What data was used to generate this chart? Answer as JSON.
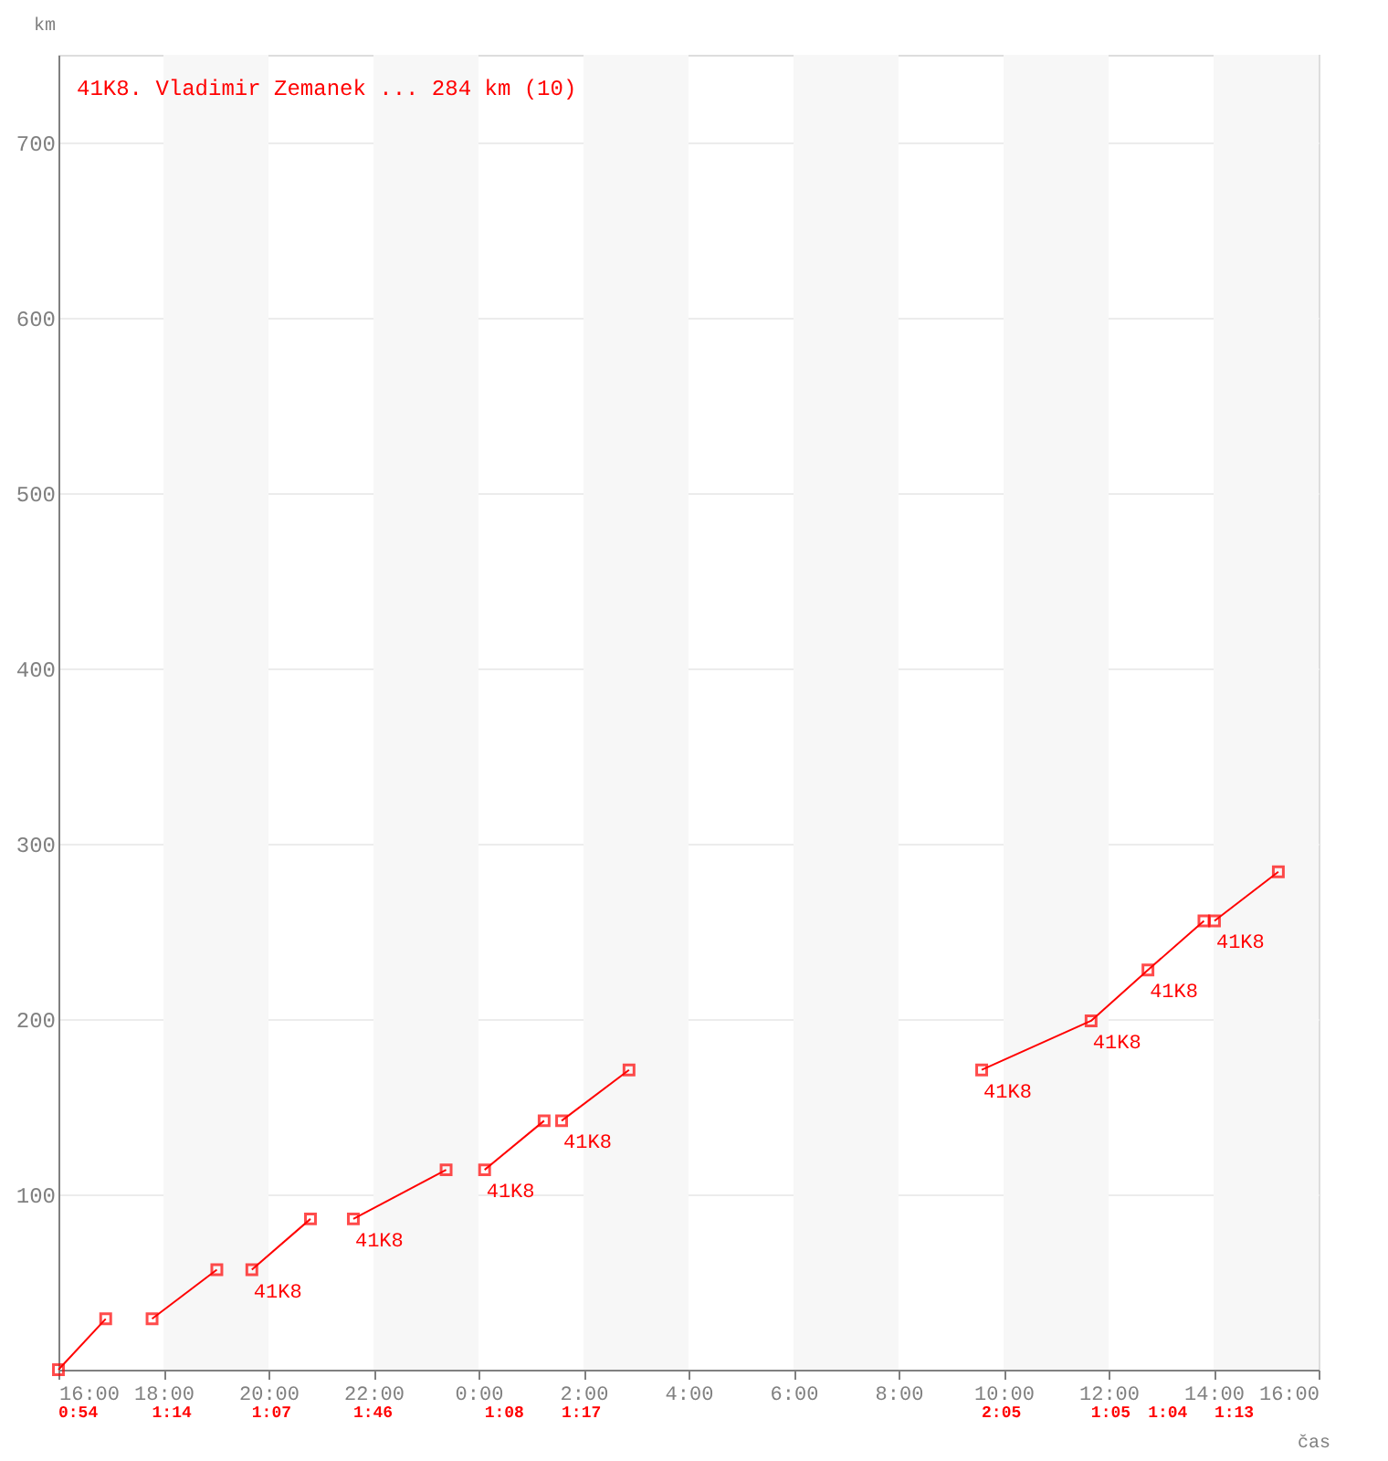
{
  "chart_data": {
    "type": "line",
    "title": "41K8. Vladimir Zemanek ... 284 km (10)",
    "xlabel": "čas",
    "ylabel": "km",
    "xlim": [
      "2000-01-01T16:00",
      "2000-01-02T16:00"
    ],
    "xticks": [
      {
        "value": "2000-01-01T16:00",
        "label": "16:00"
      },
      {
        "value": "2000-01-01T18:00",
        "label": "18:00"
      },
      {
        "value": "2000-01-01T20:00",
        "label": "20:00"
      },
      {
        "value": "2000-01-01T22:00",
        "label": "22:00"
      },
      {
        "value": "2000-01-02T00:00",
        "label": "0:00"
      },
      {
        "value": "2000-01-02T02:00",
        "label": "2:00"
      },
      {
        "value": "2000-01-02T04:00",
        "label": "4:00"
      },
      {
        "value": "2000-01-02T06:00",
        "label": "6:00"
      },
      {
        "value": "2000-01-02T08:00",
        "label": "8:00"
      },
      {
        "value": "2000-01-02T10:00",
        "label": "10:00"
      },
      {
        "value": "2000-01-02T12:00",
        "label": "12:00"
      },
      {
        "value": "2000-01-02T14:00",
        "label": "14:00"
      },
      {
        "value": "2000-01-02T16:00",
        "label": "16:00"
      }
    ],
    "ylim": [
      0,
      750
    ],
    "yticks": [
      100,
      200,
      300,
      400,
      500,
      600,
      700
    ],
    "grid": "y",
    "marker": "square",
    "line_style": "solid",
    "series": [
      {
        "color": "#ff0000",
        "x": [
          "2000-01-01T16:00",
          "2000-01-01T16:54"
        ],
        "values": [
          0,
          29
        ]
      },
      {
        "color": "#ff0000",
        "x": [
          "2000-01-01T17:47",
          "2000-01-01T19:01"
        ],
        "values": [
          29,
          57
        ]
      },
      {
        "color": "#ff0000",
        "x": [
          "2000-01-01T19:41",
          "2000-01-01T20:48"
        ],
        "values": [
          57,
          86
        ]
      },
      {
        "color": "#ff0000",
        "x": [
          "2000-01-01T21:37",
          "2000-01-01T23:23"
        ],
        "values": [
          86,
          114
        ]
      },
      {
        "color": "#ff0000",
        "x": [
          "2000-01-02T00:07",
          "2000-01-02T01:15"
        ],
        "values": [
          114,
          142
        ]
      },
      {
        "color": "#ff0000",
        "x": [
          "2000-01-02T01:35",
          "2000-01-02T02:52"
        ],
        "values": [
          142,
          171
        ]
      },
      {
        "color": "#ff0000",
        "x": [
          "2000-01-02T09:35",
          "2000-01-02T11:40",
          "2000-01-02T12:45",
          "2000-01-02T13:49"
        ],
        "values": [
          171,
          199,
          228,
          256
        ]
      },
      {
        "color": "#ff0000",
        "x": [
          "2000-01-02T14:01",
          "2000-01-02T15:14"
        ],
        "values": [
          256,
          284
        ]
      }
    ],
    "bands": [
      {
        "axis": "x",
        "from": "2000-01-01T18:00",
        "to": "2000-01-01T20:00",
        "color": "#f7f7f7"
      },
      {
        "axis": "x",
        "from": "2000-01-01T22:00",
        "to": "2000-01-02T00:00",
        "color": "#f7f7f7"
      },
      {
        "axis": "x",
        "from": "2000-01-02T02:00",
        "to": "2000-01-02T04:00",
        "color": "#f7f7f7"
      },
      {
        "axis": "x",
        "from": "2000-01-02T06:00",
        "to": "2000-01-02T08:00",
        "color": "#f7f7f7"
      },
      {
        "axis": "x",
        "from": "2000-01-02T10:00",
        "to": "2000-01-02T12:00",
        "color": "#f7f7f7"
      },
      {
        "axis": "x",
        "from": "2000-01-02T14:00",
        "to": "2000-01-02T16:00",
        "color": "#f7f7f7"
      }
    ],
    "annotations": [
      {
        "text": "41K8",
        "x": "2000-01-01T19:41",
        "y": 57
      },
      {
        "text": "41K8",
        "x": "2000-01-01T21:37",
        "y": 86
      },
      {
        "text": "41K8",
        "x": "2000-01-02T00:07",
        "y": 114
      },
      {
        "text": "41K8",
        "x": "2000-01-02T01:35",
        "y": 142
      },
      {
        "text": "41K8",
        "x": "2000-01-02T09:35",
        "y": 171
      },
      {
        "text": "41K8",
        "x": "2000-01-02T11:40",
        "y": 199
      },
      {
        "text": "41K8",
        "x": "2000-01-02T12:45",
        "y": 228
      },
      {
        "text": "41K8",
        "x": "2000-01-02T14:01",
        "y": 256
      },
      "0:54",
      "1:14",
      "1:07",
      "1:46",
      "1:08",
      "1:17",
      "2:05",
      "1:05",
      "1:04",
      "1:13"
    ]
  }
}
